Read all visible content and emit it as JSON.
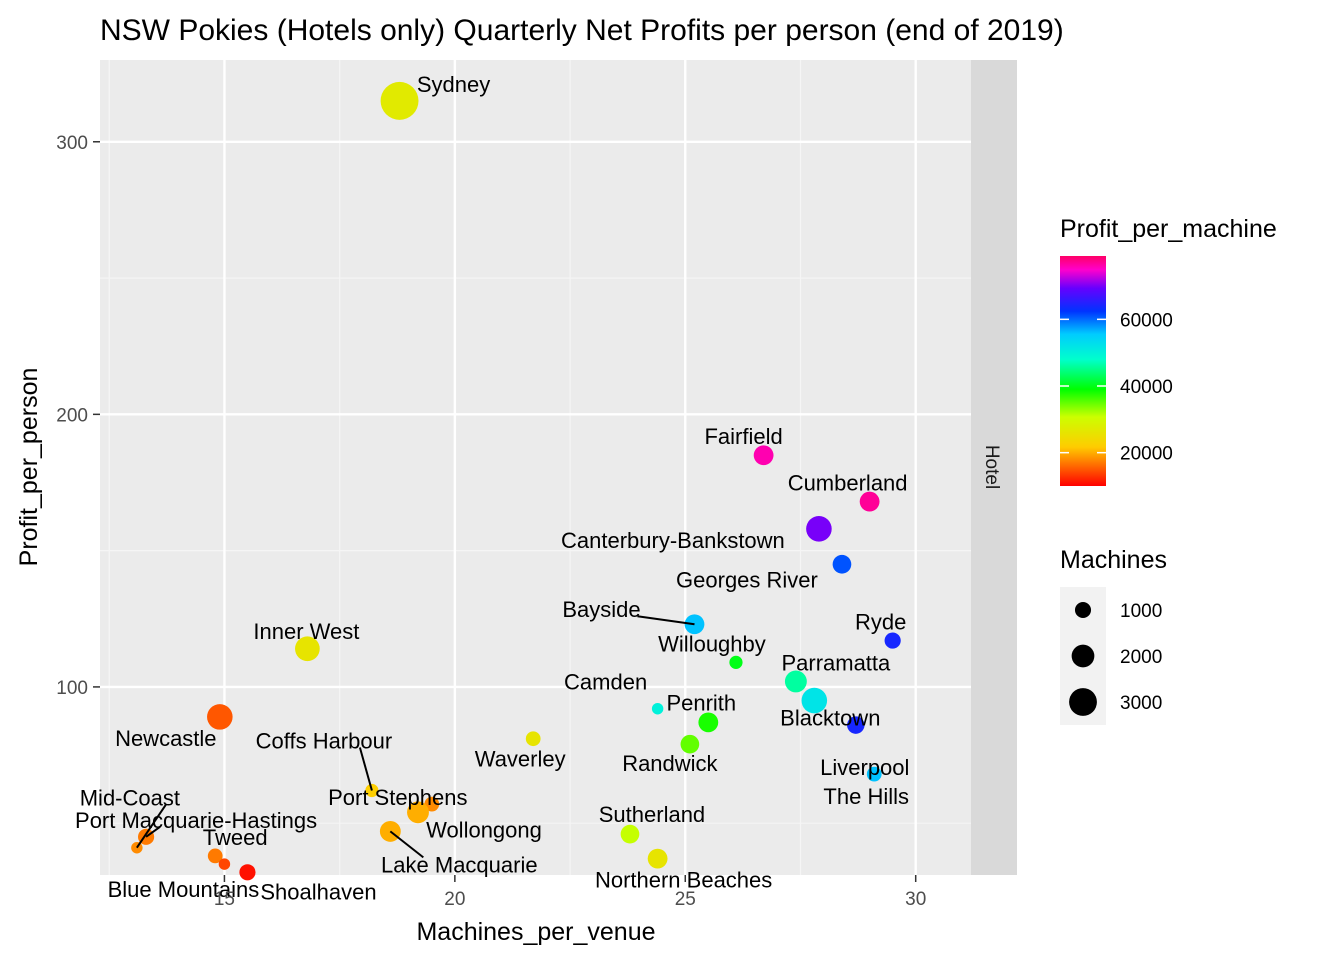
{
  "chart_data": {
    "type": "scatter",
    "title": "NSW Pokies (Hotels only) Quarterly Net Profits per person (end of 2019)",
    "xlabel": "Machines_per_venue",
    "ylabel": "Profit_per_person",
    "xlim": [
      12.3,
      31.2
    ],
    "ylim": [
      31,
      330
    ],
    "x_ticks": [
      15,
      20,
      25,
      30
    ],
    "y_ticks": [
      100,
      200,
      300
    ],
    "grid": true,
    "facet_label": "Hotel",
    "legend_placement": "right",
    "color_legend": {
      "title": "Profit_per_machine",
      "ticks": [
        20000,
        40000,
        60000
      ],
      "range": [
        10000,
        79000
      ]
    },
    "size_legend": {
      "title": "Machines",
      "entries": [
        1000,
        2000,
        3000
      ]
    },
    "points": [
      {
        "label": "Sydney",
        "x": 18.8,
        "y": 315,
        "machines": 3300,
        "profit_per_machine": 27000
      },
      {
        "label": "Fairfield",
        "x": 26.7,
        "y": 185,
        "machines": 900,
        "profit_per_machine": 76000
      },
      {
        "label": "Cumberland",
        "x": 29.0,
        "y": 168,
        "machines": 900,
        "profit_per_machine": 77000
      },
      {
        "label": "Canterbury-Bankstown",
        "x": 27.9,
        "y": 158,
        "machines": 1500,
        "profit_per_machine": 70000
      },
      {
        "label": "Georges River",
        "x": 28.4,
        "y": 145,
        "machines": 800,
        "profit_per_machine": 61000
      },
      {
        "label": "Bayside",
        "x": 25.2,
        "y": 123,
        "machines": 900,
        "profit_per_machine": 56000
      },
      {
        "label": "Ryde",
        "x": 29.5,
        "y": 117,
        "machines": 600,
        "profit_per_machine": 64000
      },
      {
        "label": "Inner West",
        "x": 16.8,
        "y": 114,
        "machines": 1400,
        "profit_per_machine": 26000
      },
      {
        "label": "Willoughby",
        "x": 26.1,
        "y": 109,
        "machines": 400,
        "profit_per_machine": 40000
      },
      {
        "label": "Parramatta",
        "x": 27.4,
        "y": 102,
        "machines": 1100,
        "profit_per_machine": 46000
      },
      {
        "label": "Blacktown",
        "x": 27.8,
        "y": 95,
        "machines": 1500,
        "profit_per_machine": 52000
      },
      {
        "label": "Camden",
        "x": 24.4,
        "y": 92,
        "machines": 300,
        "profit_per_machine": 50000
      },
      {
        "label": "Newcastle",
        "x": 14.9,
        "y": 89,
        "machines": 1500,
        "profit_per_machine": 15000
      },
      {
        "label": "Penrith",
        "x": 25.5,
        "y": 87,
        "machines": 900,
        "profit_per_machine": 38000
      },
      {
        "label": "Liverpool",
        "x": 28.7,
        "y": 86,
        "machines": 700,
        "profit_per_machine": 64000
      },
      {
        "label": "Waverley",
        "x": 21.7,
        "y": 81,
        "machines": 500,
        "profit_per_machine": 26000
      },
      {
        "label": "Randwick",
        "x": 25.1,
        "y": 79,
        "machines": 800,
        "profit_per_machine": 35000
      },
      {
        "label": "The Hills",
        "x": 29.1,
        "y": 68,
        "machines": 500,
        "profit_per_machine": 56000
      },
      {
        "label": "Coffs Harbour",
        "x": 18.2,
        "y": 62,
        "machines": 400,
        "profit_per_machine": 22000
      },
      {
        "label": "Port Stephens",
        "x": 19.5,
        "y": 57,
        "machines": 500,
        "profit_per_machine": 18000
      },
      {
        "label": "Wollongong",
        "x": 19.2,
        "y": 54,
        "machines": 1100,
        "profit_per_machine": 20000
      },
      {
        "label": "Lake Macquarie",
        "x": 18.6,
        "y": 47,
        "machines": 1000,
        "profit_per_machine": 20000
      },
      {
        "label": "Sutherland",
        "x": 23.8,
        "y": 46,
        "machines": 800,
        "profit_per_machine": 31000
      },
      {
        "label": "Port Macquarie-Hastings",
        "x": 13.3,
        "y": 45,
        "machines": 600,
        "profit_per_machine": 17000
      },
      {
        "label": "Mid-Coast",
        "x": 13.1,
        "y": 41,
        "machines": 300,
        "profit_per_machine": 18000
      },
      {
        "label": "Tweed",
        "x": 14.8,
        "y": 38,
        "machines": 500,
        "profit_per_machine": 17000
      },
      {
        "label": "Northern Beaches",
        "x": 24.4,
        "y": 37,
        "machines": 900,
        "profit_per_machine": 26000
      },
      {
        "label": "Blue Mountains",
        "x": 15.0,
        "y": 35,
        "machines": 300,
        "profit_per_machine": 14000
      },
      {
        "label": "Shoalhaven",
        "x": 15.5,
        "y": 32,
        "machines": 600,
        "profit_per_machine": 11000
      }
    ]
  }
}
